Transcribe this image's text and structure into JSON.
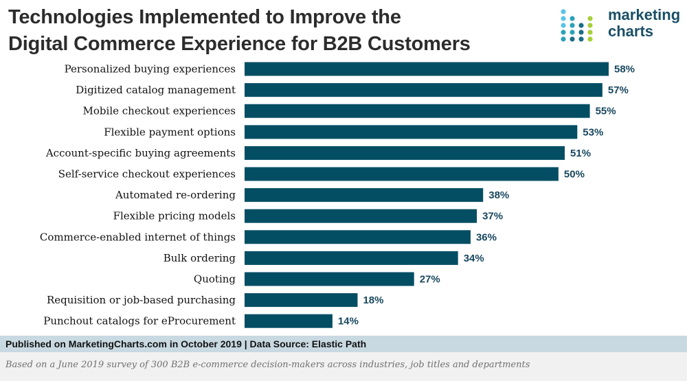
{
  "header": {
    "title_line1": "Technologies Implemented to Improve the",
    "title_line2": "Digital Commerce Experience for B2B Customers"
  },
  "logo": {
    "line1": "marketing",
    "line2": "charts",
    "colors": [
      "#5bc3e8",
      "#2aa3b8",
      "#1a6e86",
      "#a6cf3a"
    ]
  },
  "chart_data": {
    "type": "bar",
    "orientation": "horizontal",
    "categories": [
      "Personalized buying experiences",
      "Digitized catalog management",
      "Mobile checkout experiences",
      "Flexible payment options",
      "Account-specific buying agreements",
      "Self-service checkout experiences",
      "Automated re-ordering",
      "Flexible pricing models",
      "Commerce-enabled internet of things",
      "Bulk ordering",
      "Quoting",
      "Requisition or job-based purchasing",
      "Punchout catalogs for eProcurement"
    ],
    "values": [
      58,
      57,
      55,
      53,
      51,
      50,
      38,
      37,
      36,
      34,
      27,
      18,
      14
    ],
    "value_labels": [
      "58%",
      "57%",
      "55%",
      "53%",
      "51%",
      "50%",
      "38%",
      "37%",
      "36%",
      "34%",
      "27%",
      "18%",
      "14%"
    ],
    "title": "Technologies Implemented to Improve the Digital Commerce Experience for B2B Customers",
    "xlabel": "",
    "ylabel": "",
    "xlim": [
      0,
      58
    ],
    "grid": false,
    "bar_color": "#044e63"
  },
  "footer": {
    "source": "Published on MarketingCharts.com in October 2019 | Data Source: Elastic Path",
    "note": "Based on a June 2019 survey of 300 B2B e-commerce decision-makers across industries, job titles and departments"
  }
}
